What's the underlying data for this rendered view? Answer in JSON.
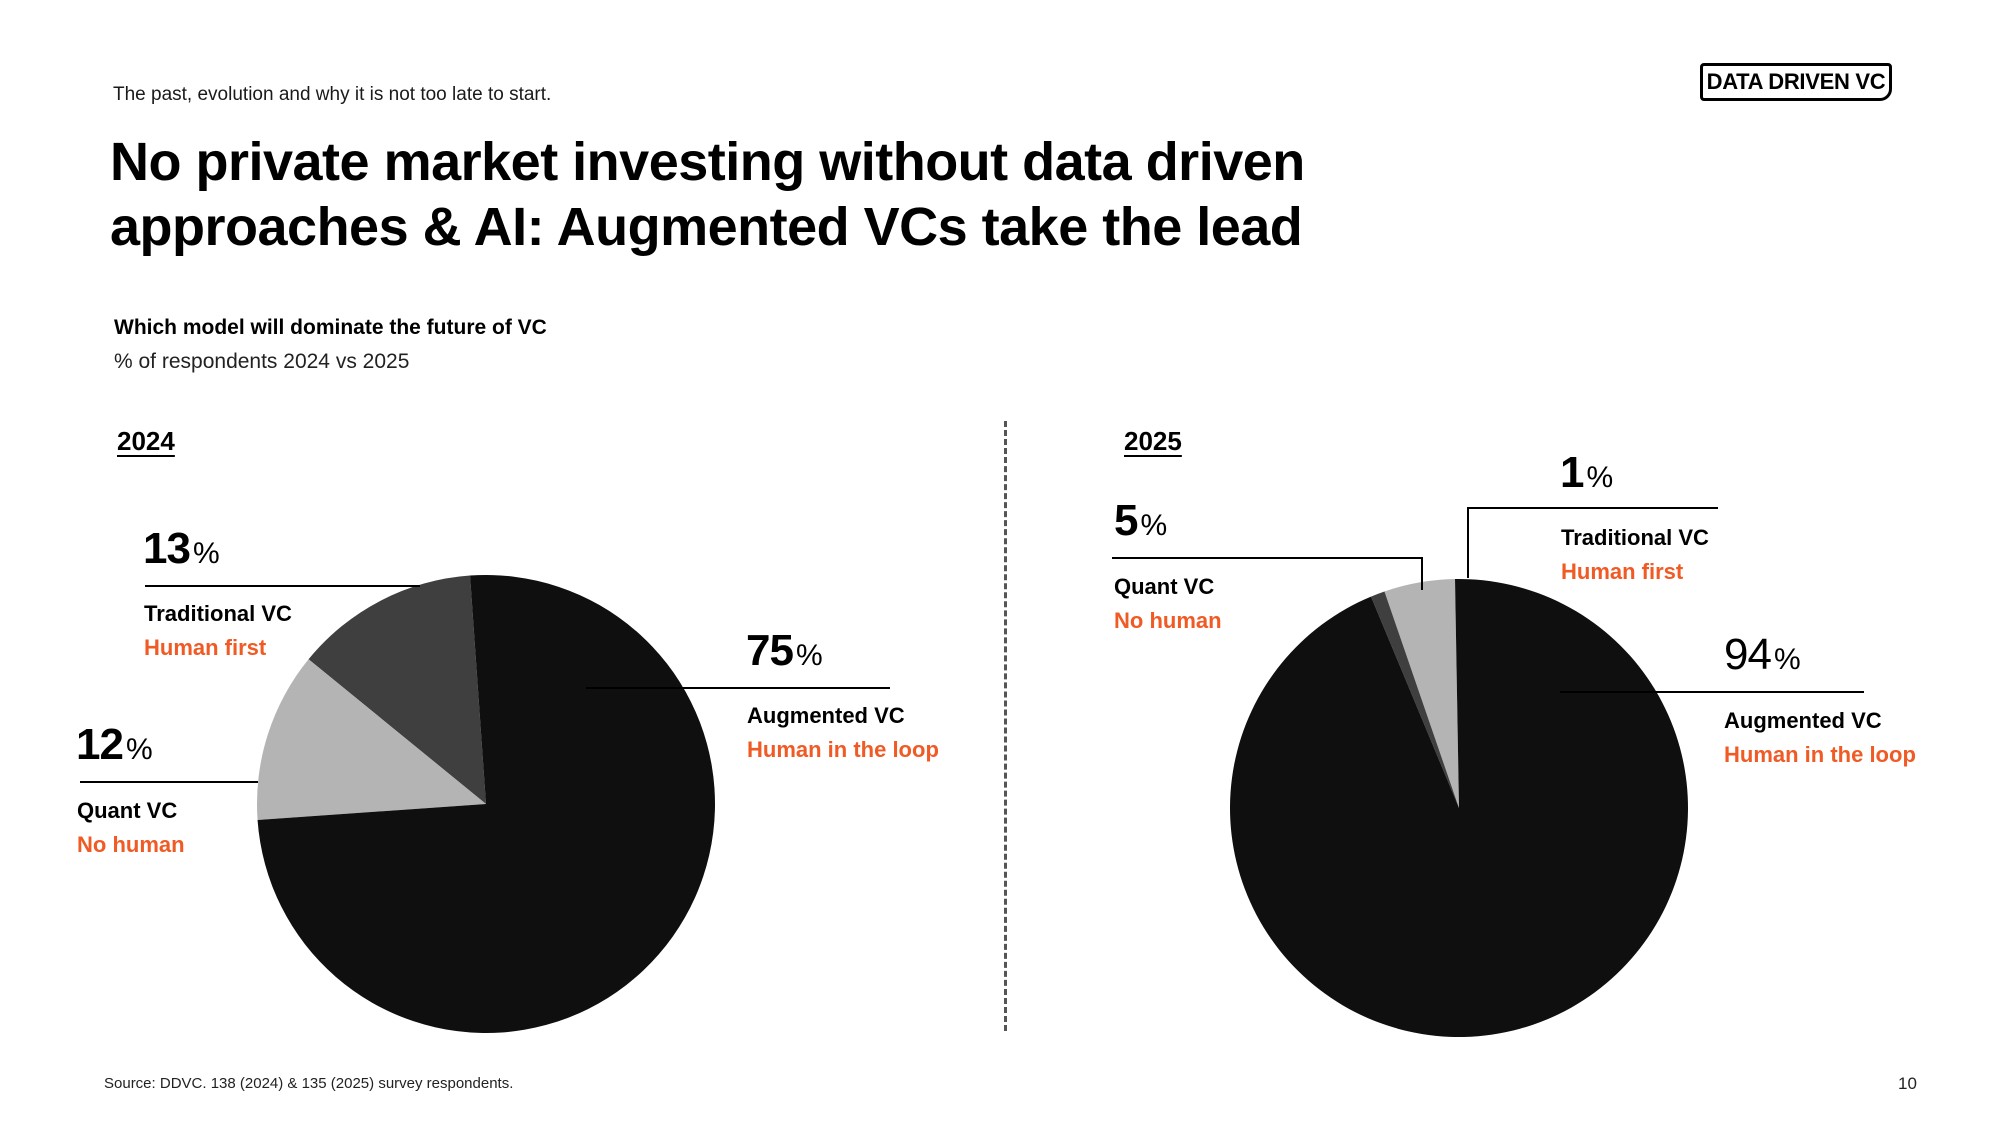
{
  "header": {
    "kicker": "The past, evolution and why it is not too late to start.",
    "logo": "DATA DRIVEN VC",
    "title_line1": "No private market investing without data driven",
    "title_line2": "approaches & AI: Augmented VCs take the lead"
  },
  "chart_heading": {
    "title": "Which model will dominate the future of VC",
    "subtitle": "% of respondents 2024 vs 2025"
  },
  "chart_data": [
    {
      "type": "pie",
      "title": "2024",
      "unit": "%",
      "slices": [
        {
          "name": "Augmented VC",
          "tagline": "Human in the loop",
          "value": 75,
          "color": "#0f0f0f"
        },
        {
          "name": "Quant VC",
          "tagline": "No human",
          "value": 12,
          "color": "#b4b4b4"
        },
        {
          "name": "Traditional VC",
          "tagline": "Human first",
          "value": 13,
          "color": "#3f3f3f"
        }
      ]
    },
    {
      "type": "pie",
      "title": "2025",
      "unit": "%",
      "slices": [
        {
          "name": "Augmented VC",
          "tagline": "Human in the loop",
          "value": 94,
          "color": "#0f0f0f"
        },
        {
          "name": "Quant VC",
          "tagline": "No human",
          "value": 5,
          "color": "#b4b4b4"
        },
        {
          "name": "Traditional VC",
          "tagline": "Human first",
          "value": 1,
          "color": "#3f3f3f"
        }
      ]
    }
  ],
  "footer": {
    "source": "Source: DDVC. 138 (2024) & 135 (2025) survey respondents.",
    "page_number": "10"
  }
}
